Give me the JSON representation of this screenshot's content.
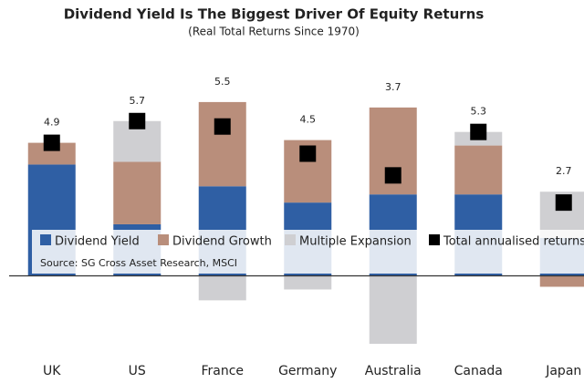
{
  "chart_data": {
    "type": "stacked-bar",
    "title": "Dividend Yield Is The Biggest Driver Of Equity Returns",
    "subtitle": "(Real Total Returns Since 1970)",
    "source": "Source: SG Cross Asset Research, MSCI",
    "categories": [
      "UK",
      "US",
      "France",
      "Germany",
      "Australia",
      "Canada",
      "Japan"
    ],
    "series": [
      {
        "name": "Dividend Yield",
        "color": "#2f5fa4",
        "values": [
          4.1,
          1.9,
          3.3,
          2.7,
          3.0,
          3.0,
          1.4
        ]
      },
      {
        "name": "Dividend Growth",
        "color": "#b98e7b",
        "values": [
          0.8,
          2.3,
          3.1,
          2.3,
          3.2,
          1.8,
          -0.4
        ]
      },
      {
        "name": "Multiple Expansion",
        "color": "#cfcfd2",
        "values": [
          0,
          1.5,
          -0.9,
          -0.5,
          -2.5,
          0.5,
          1.7
        ]
      },
      {
        "name": "Total annualised returns",
        "color": "#000000",
        "type": "marker",
        "values": [
          4.9,
          5.7,
          5.5,
          4.5,
          3.7,
          5.3,
          2.7
        ]
      }
    ],
    "ylim": [
      -2.6,
      6.8
    ]
  }
}
